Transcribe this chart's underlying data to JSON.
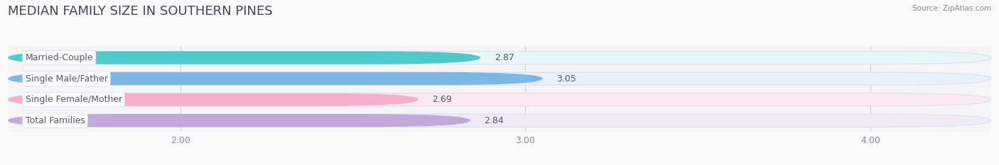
{
  "title": "MEDIAN FAMILY SIZE IN SOUTHERN PINES",
  "source": "Source: ZipAtlas.com",
  "categories": [
    "Married-Couple",
    "Single Male/Father",
    "Single Female/Mother",
    "Total Families"
  ],
  "values": [
    2.87,
    3.05,
    2.69,
    2.84
  ],
  "bar_colors": [
    "#4ECAC8",
    "#7BB8E8",
    "#F5AECB",
    "#C0A8D8"
  ],
  "bar_bg_colors": [
    "#E8F8F8",
    "#E8F0FC",
    "#FCE8F2",
    "#F0EAF8"
  ],
  "label_color": "#555566",
  "value_color": "#555566",
  "background_color": "#FAFAFA",
  "plot_bg_color": "#F5F5F8",
  "xlim_min": 1.5,
  "xlim_max": 4.35,
  "data_min": 1.5,
  "xticks": [
    2.0,
    3.0,
    4.0
  ],
  "xtick_labels": [
    "2.00",
    "3.00",
    "4.00"
  ],
  "title_fontsize": 13,
  "label_fontsize": 9,
  "value_fontsize": 9,
  "bar_height": 0.62,
  "bar_gap": 0.38
}
